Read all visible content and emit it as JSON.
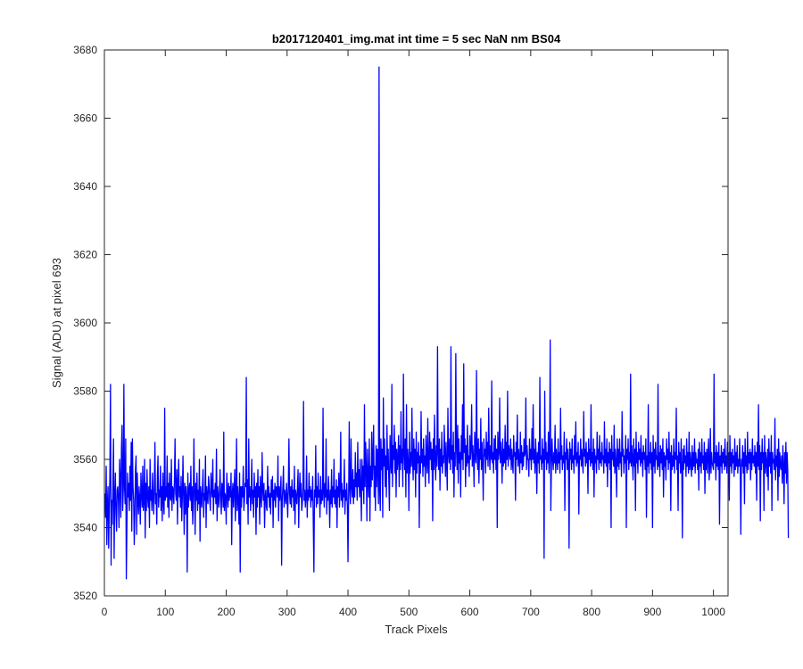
{
  "chart_data": {
    "type": "line",
    "title": "b2017120401_img.mat int time = 5 sec  NaN nm BS04",
    "xlabel": "Track Pixels",
    "ylabel": "Signal (ADU) at pixel 693",
    "xlim": [
      0,
      1024
    ],
    "ylim": [
      3520,
      3680
    ],
    "xticks": [
      0,
      100,
      200,
      300,
      400,
      500,
      600,
      700,
      800,
      900,
      1000
    ],
    "yticks": [
      3520,
      3540,
      3560,
      3580,
      3600,
      3620,
      3640,
      3660,
      3680
    ],
    "grid": false,
    "series": [
      {
        "color": "#0000ff",
        "x_start": 1,
        "x_step": 1,
        "values": [
          3550,
          3543,
          3558,
          3535,
          3547,
          3552,
          3534,
          3546,
          3555,
          3582,
          3529,
          3548,
          3541,
          3553,
          3566,
          3531,
          3549,
          3556,
          3544,
          3539,
          3551,
          3552,
          3548,
          3540,
          3560,
          3554,
          3543,
          3563,
          3570,
          3545,
          3551,
          3582,
          3552,
          3547,
          3566,
          3525,
          3541,
          3556,
          3549,
          3553,
          3545,
          3558,
          3548,
          3565,
          3539,
          3566,
          3552,
          3548,
          3535,
          3544,
          3557,
          3561,
          3538,
          3556,
          3548,
          3544,
          3552,
          3548,
          3541,
          3556,
          3550,
          3546,
          3558,
          3545,
          3548,
          3560,
          3537,
          3553,
          3545,
          3557,
          3549,
          3546,
          3552,
          3540,
          3560,
          3548,
          3551,
          3545,
          3556,
          3549,
          3544,
          3552,
          3565,
          3547,
          3550,
          3541,
          3555,
          3561,
          3546,
          3551,
          3549,
          3558,
          3545,
          3552,
          3542,
          3556,
          3548,
          3544,
          3575,
          3548,
          3552,
          3549,
          3561,
          3546,
          3553,
          3543,
          3556,
          3549,
          3548,
          3560,
          3545,
          3552,
          3551,
          3547,
          3554,
          3566,
          3550,
          3548,
          3557,
          3541,
          3553,
          3560,
          3549,
          3552,
          3546,
          3555,
          3542,
          3549,
          3561,
          3550,
          3538,
          3553,
          3544,
          3552,
          3549,
          3527,
          3556,
          3546,
          3551,
          3553,
          3548,
          3558,
          3545,
          3552,
          3541,
          3549,
          3566,
          3550,
          3538,
          3553,
          3548,
          3556,
          3545,
          3551,
          3547,
          3560,
          3536,
          3552,
          3549,
          3546,
          3552,
          3557,
          3543,
          3550,
          3548,
          3561,
          3540,
          3552,
          3549,
          3547,
          3555,
          3552,
          3548,
          3545,
          3556,
          3551,
          3549,
          3560,
          3544,
          3551,
          3549,
          3553,
          3547,
          3563,
          3542,
          3552,
          3549,
          3546,
          3551,
          3557,
          3548,
          3544,
          3553,
          3552,
          3546,
          3568,
          3545,
          3550,
          3549,
          3541,
          3556,
          3550,
          3546,
          3553,
          3548,
          3552,
          3549,
          3556,
          3535,
          3550,
          3553,
          3546,
          3551,
          3557,
          3542,
          3549,
          3566,
          3545,
          3552,
          3548,
          3541,
          3556,
          3527,
          3552,
          3546,
          3552,
          3549,
          3558,
          3545,
          3548,
          3553,
          3552,
          3584,
          3547,
          3554,
          3541,
          3566,
          3549,
          3552,
          3545,
          3550,
          3560,
          3547,
          3551,
          3543,
          3556,
          3549,
          3552,
          3538,
          3553,
          3546,
          3557,
          3549,
          3552,
          3541,
          3555,
          3549,
          3546,
          3562,
          3551,
          3548,
          3553,
          3540,
          3549,
          3551,
          3546,
          3545,
          3558,
          3549,
          3552,
          3546,
          3550,
          3544,
          3554,
          3549,
          3555,
          3540,
          3551,
          3548,
          3553,
          3546,
          3552,
          3551,
          3549,
          3561,
          3542,
          3552,
          3548,
          3551,
          3555,
          3529,
          3548,
          3552,
          3558,
          3546,
          3551,
          3549,
          3547,
          3553,
          3549,
          3543,
          3552,
          3566,
          3550,
          3547,
          3552,
          3546,
          3554,
          3549,
          3551,
          3545,
          3558,
          3541,
          3551,
          3549,
          3547,
          3552,
          3557,
          3540,
          3550,
          3556,
          3549,
          3553,
          3545,
          3547,
          3552,
          3577,
          3548,
          3551,
          3546,
          3549,
          3561,
          3543,
          3551,
          3548,
          3556,
          3549,
          3552,
          3546,
          3551,
          3548,
          3555,
          3541,
          3527,
          3551,
          3549,
          3564,
          3546,
          3552,
          3547,
          3556,
          3549,
          3551,
          3543,
          3555,
          3547,
          3551,
          3548,
          3575,
          3550,
          3546,
          3553,
          3549,
          3566,
          3544,
          3551,
          3548,
          3555,
          3549,
          3540,
          3551,
          3547,
          3557,
          3546,
          3552,
          3549,
          3560,
          3547,
          3551,
          3546,
          3554,
          3540,
          3552,
          3549,
          3556,
          3546,
          3551,
          3568,
          3548,
          3553,
          3546,
          3551,
          3549,
          3560,
          3544,
          3551,
          3548,
          3553,
          3546,
          3530,
          3549,
          3571,
          3551,
          3547,
          3566,
          3552,
          3549,
          3557,
          3547,
          3554,
          3549,
          3562,
          3552,
          3556,
          3548,
          3565,
          3552,
          3557,
          3549,
          3560,
          3552,
          3542,
          3560,
          3551,
          3558,
          3547,
          3576,
          3552,
          3565,
          3557,
          3542,
          3563,
          3554,
          3549,
          3566,
          3542,
          3558,
          3552,
          3568,
          3554,
          3560,
          3570,
          3549,
          3558,
          3545,
          3564,
          3552,
          3563,
          3557,
          3547,
          3675,
          3551,
          3545,
          3566,
          3557,
          3563,
          3543,
          3578,
          3558,
          3566,
          3552,
          3561,
          3549,
          3570,
          3557,
          3563,
          3554,
          3545,
          3567,
          3560,
          3556,
          3582,
          3552,
          3564,
          3560,
          3570,
          3556,
          3565,
          3549,
          3563,
          3557,
          3560,
          3567,
          3552,
          3564,
          3557,
          3574,
          3559,
          3563,
          3552,
          3585,
          3562,
          3557,
          3566,
          3549,
          3576,
          3556,
          3563,
          3559,
          3545,
          3568,
          3556,
          3562,
          3558,
          3575,
          3560,
          3554,
          3566,
          3557,
          3563,
          3549,
          3568,
          3556,
          3562,
          3559,
          3565,
          3540,
          3561,
          3556,
          3574,
          3559,
          3563,
          3555,
          3566,
          3558,
          3561,
          3552,
          3567,
          3560,
          3556,
          3572,
          3559,
          3553,
          3568,
          3560,
          3565,
          3557,
          3563,
          3542,
          3566,
          3557,
          3573,
          3560,
          3554,
          3564,
          3558,
          3593,
          3562,
          3557,
          3566,
          3551,
          3563,
          3558,
          3568,
          3556,
          3561,
          3559,
          3570,
          3562,
          3555,
          3565,
          3558,
          3551,
          3575,
          3562,
          3559,
          3566,
          3557,
          3593,
          3560,
          3564,
          3556,
          3568,
          3549,
          3562,
          3558,
          3591,
          3564,
          3557,
          3570,
          3553,
          3566,
          3559,
          3562,
          3549,
          3567,
          3560,
          3576,
          3557,
          3588,
          3562,
          3566,
          3552,
          3564,
          3558,
          3570,
          3559,
          3561,
          3555,
          3567,
          3560,
          3563,
          3576,
          3558,
          3564,
          3560,
          3552,
          3568,
          3561,
          3559,
          3586,
          3562,
          3557,
          3566,
          3553,
          3563,
          3560,
          3572,
          3557,
          3565,
          3559,
          3548,
          3566,
          3561,
          3563,
          3556,
          3568,
          3560,
          3565,
          3558,
          3575,
          3562,
          3557,
          3564,
          3560,
          3583,
          3559,
          3562,
          3556,
          3566,
          3560,
          3567,
          3557,
          3563,
          3540,
          3568,
          3560,
          3562,
          3578,
          3559,
          3565,
          3561,
          3553,
          3566,
          3558,
          3563,
          3559,
          3570,
          3557,
          3565,
          3560,
          3580,
          3558,
          3564,
          3562,
          3560,
          3566,
          3557,
          3563,
          3559,
          3556,
          3567,
          3561,
          3562,
          3548,
          3565,
          3560,
          3573,
          3558,
          3563,
          3560,
          3556,
          3568,
          3559,
          3564,
          3557,
          3562,
          3558,
          3566,
          3561,
          3562,
          3578,
          3557,
          3564,
          3560,
          3560,
          3555,
          3566,
          3560,
          3563,
          3557,
          3569,
          3560,
          3576,
          3559,
          3563,
          3556,
          3566,
          3561,
          3550,
          3562,
          3559,
          3565,
          3556,
          3584,
          3560,
          3561,
          3557,
          3566,
          3559,
          3563,
          3531,
          3580,
          3560,
          3565,
          3557,
          3562,
          3559,
          3568,
          3556,
          3563,
          3595,
          3545,
          3558,
          3566,
          3560,
          3557,
          3562,
          3559,
          3570,
          3556,
          3563,
          3560,
          3557,
          3566,
          3559,
          3562,
          3556,
          3575,
          3560,
          3564,
          3557,
          3561,
          3559,
          3568,
          3545,
          3562,
          3560,
          3566,
          3557,
          3563,
          3559,
          3534,
          3565,
          3560,
          3563,
          3557,
          3566,
          3559,
          3561,
          3556,
          3567,
          3560,
          3571,
          3558,
          3562,
          3559,
          3565,
          3544,
          3561,
          3560,
          3566,
          3558,
          3563,
          3559,
          3556,
          3574,
          3561,
          3563,
          3558,
          3565,
          3559,
          3562,
          3550,
          3566,
          3560,
          3563,
          3558,
          3576,
          3559,
          3562,
          3557,
          3566,
          3549,
          3563,
          3559,
          3561,
          3556,
          3568,
          3560,
          3563,
          3557,
          3567,
          3559,
          3562,
          3558,
          3565,
          3560,
          3561,
          3556,
          3571,
          3559,
          3563,
          3558,
          3566,
          3552,
          3562,
          3559,
          3565,
          3557,
          3563,
          3540,
          3567,
          3560,
          3562,
          3558,
          3570,
          3556,
          3563,
          3559,
          3549,
          3566,
          3558,
          3563,
          3557,
          3566,
          3559,
          3562,
          3555,
          3574,
          3561,
          3563,
          3556,
          3561,
          3559,
          3567,
          3540,
          3563,
          3560,
          3566,
          3557,
          3562,
          3559,
          3585,
          3558,
          3564,
          3560,
          3554,
          3566,
          3558,
          3563,
          3545,
          3568,
          3559,
          3562,
          3556,
          3565,
          3560,
          3563,
          3558,
          3567,
          3559,
          3562,
          3555,
          3564,
          3560,
          3562,
          3557,
          3566,
          3543,
          3561,
          3558,
          3576,
          3556,
          3562,
          3559,
          3565,
          3557,
          3562,
          3540,
          3567,
          3558,
          3563,
          3556,
          3565,
          3560,
          3561,
          3557,
          3582,
          3558,
          3562,
          3555,
          3564,
          3559,
          3563,
          3557,
          3566,
          3549,
          3562,
          3558,
          3561,
          3554,
          3566,
          3560,
          3563,
          3557,
          3568,
          3559,
          3562,
          3545,
          3564,
          3557,
          3561,
          3558,
          3566,
          3556,
          3562,
          3560,
          3575,
          3557,
          3561,
          3545,
          3565,
          3559,
          3562,
          3556,
          3566,
          3558,
          3537,
          3563,
          3557,
          3564,
          3559,
          3561,
          3555,
          3566,
          3558,
          3562,
          3556,
          3568,
          3557,
          3562,
          3559,
          3555,
          3564,
          3557,
          3562,
          3558,
          3566,
          3556,
          3562,
          3559,
          3560,
          3557,
          3563,
          3551,
          3565,
          3558,
          3562,
          3556,
          3566,
          3559,
          3561,
          3557,
          3565,
          3550,
          3562,
          3557,
          3563,
          3556,
          3561,
          3566,
          3554,
          3558,
          3569,
          3556,
          3562,
          3559,
          3558,
          3557,
          3585,
          3559,
          3562,
          3554,
          3564,
          3558,
          3562,
          3557,
          3565,
          3541,
          3561,
          3558,
          3564,
          3556,
          3562,
          3559,
          3563,
          3557,
          3566,
          3558,
          3561,
          3556,
          3565,
          3559,
          3562,
          3548,
          3567,
          3558,
          3562,
          3556,
          3563,
          3559,
          3561,
          3555,
          3566,
          3557,
          3562,
          3558,
          3564,
          3556,
          3560,
          3558,
          3566,
          3557,
          3538,
          3560,
          3558,
          3564,
          3556,
          3562,
          3547,
          3566,
          3558,
          3561,
          3556,
          3568,
          3557,
          3562,
          3559,
          3563,
          3554,
          3562,
          3557,
          3566,
          3559,
          3561,
          3558,
          3564,
          3556,
          3562,
          3548,
          3565,
          3558,
          3576,
          3557,
          3564,
          3542,
          3562,
          3557,
          3566,
          3559,
          3562,
          3545,
          3567,
          3556,
          3562,
          3559,
          3555,
          3563,
          3551,
          3566,
          3558,
          3562,
          3556,
          3567,
          3545,
          3562,
          3559,
          3560,
          3557,
          3572,
          3554,
          3561,
          3558,
          3563,
          3548,
          3566,
          3555,
          3562,
          3558,
          3557,
          3561,
          3553,
          3564,
          3558,
          3547,
          3562,
          3556,
          3565,
          3553,
          3562,
          3557,
          3537
        ]
      }
    ]
  }
}
